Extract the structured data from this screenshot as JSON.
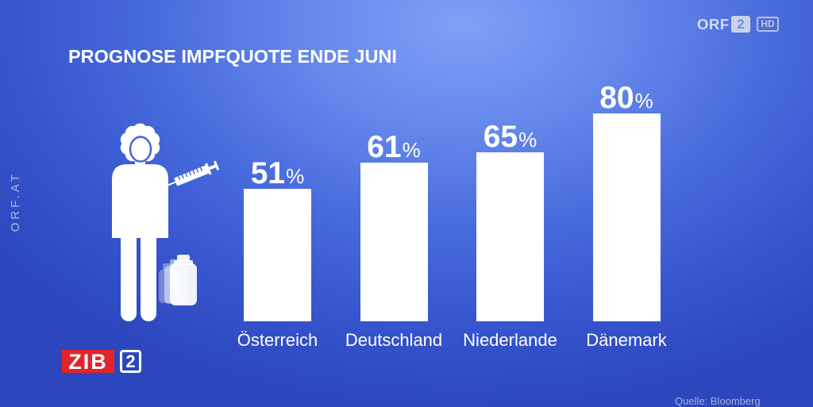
{
  "broadcast": {
    "channel_logo": {
      "orf": "ORF",
      "number": "2",
      "hd": "HD"
    },
    "side_text": "ORF.AT",
    "show_logo": {
      "name": "ZIB",
      "number": "2"
    },
    "source": "Quelle: Bloomberg"
  },
  "icons": {
    "figure": "health-worker-icon",
    "syringe": "syringe-icon",
    "bottles": "medicine-bottle-icon"
  },
  "colors": {
    "background_top": "#809ff5",
    "background_edge": "#2c47bd",
    "bar": "#ffffff",
    "text": "#ffffff",
    "zib_red": "#e2252b"
  },
  "chart_data": {
    "type": "bar",
    "title": "PROGNOSE IMPFQUOTE ENDE JUNI",
    "categories": [
      "Österreich",
      "Deutschland",
      "Niederlande",
      "Dänemark"
    ],
    "values": [
      51,
      61,
      65,
      80
    ],
    "value_suffix": "%",
    "ylim": [
      0,
      100
    ],
    "grid": false
  }
}
